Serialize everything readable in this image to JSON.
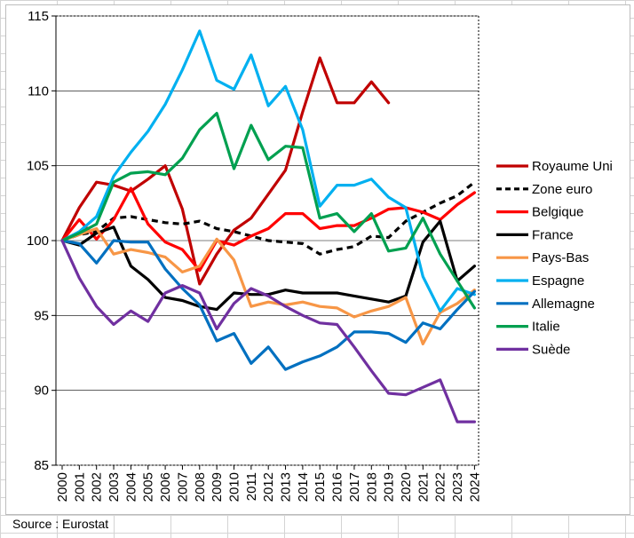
{
  "chart_data": {
    "type": "line",
    "title": "",
    "xlabel": "",
    "ylabel": "",
    "ylim": [
      85,
      115
    ],
    "yticks": [
      85,
      90,
      95,
      100,
      105,
      110,
      115
    ],
    "x": [
      2000,
      2001,
      2002,
      2003,
      2004,
      2005,
      2006,
      2007,
      2008,
      2009,
      2010,
      2011,
      2012,
      2013,
      2014,
      2015,
      2016,
      2017,
      2018,
      2019,
      2020,
      2021,
      2022,
      2023,
      2024
    ],
    "legend_position": "right",
    "series": [
      {
        "name": "Royaume Uni",
        "color": "#c00000",
        "dash": false,
        "values": [
          100,
          102.2,
          103.9,
          103.7,
          103.3,
          104.1,
          105.0,
          102.1,
          97.1,
          99.1,
          100.7,
          101.5,
          103.1,
          104.7,
          108.6,
          112.2,
          109.2,
          109.2,
          110.6,
          109.2,
          null,
          null,
          null,
          null,
          null
        ]
      },
      {
        "name": "Zone euro",
        "color": "#000000",
        "dash": true,
        "values": [
          100,
          100.4,
          100.6,
          101.5,
          101.6,
          101.4,
          101.2,
          101.1,
          101.3,
          100.8,
          100.6,
          100.3,
          100.0,
          99.9,
          99.8,
          99.1,
          99.4,
          99.6,
          100.3,
          100.2,
          101.3,
          101.9,
          102.5,
          103.0,
          103.9
        ]
      },
      {
        "name": "Belgique",
        "color": "#ff0000",
        "dash": false,
        "values": [
          100,
          101.4,
          100.1,
          101.4,
          103.5,
          101.1,
          99.9,
          99.4,
          98.0,
          100.0,
          99.7,
          100.3,
          100.8,
          101.8,
          101.8,
          100.8,
          101.0,
          101.0,
          101.5,
          102.1,
          102.2,
          101.9,
          101.4,
          102.4,
          103.2
        ]
      },
      {
        "name": "France",
        "color": "#000000",
        "dash": false,
        "values": [
          100,
          99.7,
          100.5,
          100.9,
          98.3,
          97.4,
          96.2,
          96.0,
          95.6,
          95.4,
          96.5,
          96.4,
          96.4,
          96.7,
          96.5,
          96.5,
          96.5,
          96.3,
          96.1,
          95.9,
          96.3,
          99.9,
          101.3,
          97.3,
          98.3
        ]
      },
      {
        "name": "Pays-Bas",
        "color": "#f79646",
        "dash": false,
        "values": [
          100,
          100.4,
          100.8,
          99.1,
          99.4,
          99.2,
          98.9,
          97.9,
          98.3,
          100.1,
          98.7,
          95.6,
          95.9,
          95.7,
          95.9,
          95.6,
          95.5,
          94.9,
          95.3,
          95.6,
          96.2,
          93.1,
          95.2,
          95.8,
          96.7
        ]
      },
      {
        "name": "Espagne",
        "color": "#00b0f0",
        "dash": false,
        "values": [
          100,
          100.6,
          101.6,
          104.3,
          105.9,
          107.3,
          109.1,
          111.4,
          114.0,
          110.7,
          110.1,
          112.4,
          109.0,
          110.3,
          107.4,
          102.3,
          103.7,
          103.7,
          104.1,
          102.9,
          102.2,
          97.6,
          95.3,
          96.8,
          96.4
        ]
      },
      {
        "name": "Allemagne",
        "color": "#0070c0",
        "dash": false,
        "values": [
          100,
          99.8,
          98.5,
          100.0,
          99.9,
          99.9,
          98.1,
          96.8,
          95.7,
          93.3,
          93.8,
          91.8,
          92.9,
          91.4,
          91.9,
          92.3,
          92.9,
          93.9,
          93.9,
          93.8,
          93.2,
          94.5,
          94.1,
          95.4,
          96.6
        ]
      },
      {
        "name": "Italie",
        "color": "#00a050",
        "dash": false,
        "values": [
          100,
          100.5,
          101.1,
          103.9,
          104.5,
          104.6,
          104.4,
          105.5,
          107.4,
          108.5,
          104.8,
          107.7,
          105.4,
          106.3,
          106.2,
          101.5,
          101.8,
          100.6,
          101.8,
          99.3,
          99.5,
          101.5,
          99.1,
          97.3,
          95.5
        ]
      },
      {
        "name": "Suède",
        "color": "#7030a0",
        "dash": false,
        "values": [
          100,
          97.5,
          95.6,
          94.4,
          95.3,
          94.6,
          96.5,
          97.0,
          96.5,
          94.1,
          95.8,
          96.8,
          96.3,
          95.6,
          95.0,
          94.5,
          94.4,
          92.9,
          91.3,
          89.8,
          89.7,
          90.2,
          90.7,
          87.9,
          87.9
        ]
      }
    ]
  },
  "footer": {
    "source": "Source : Eurostat"
  }
}
